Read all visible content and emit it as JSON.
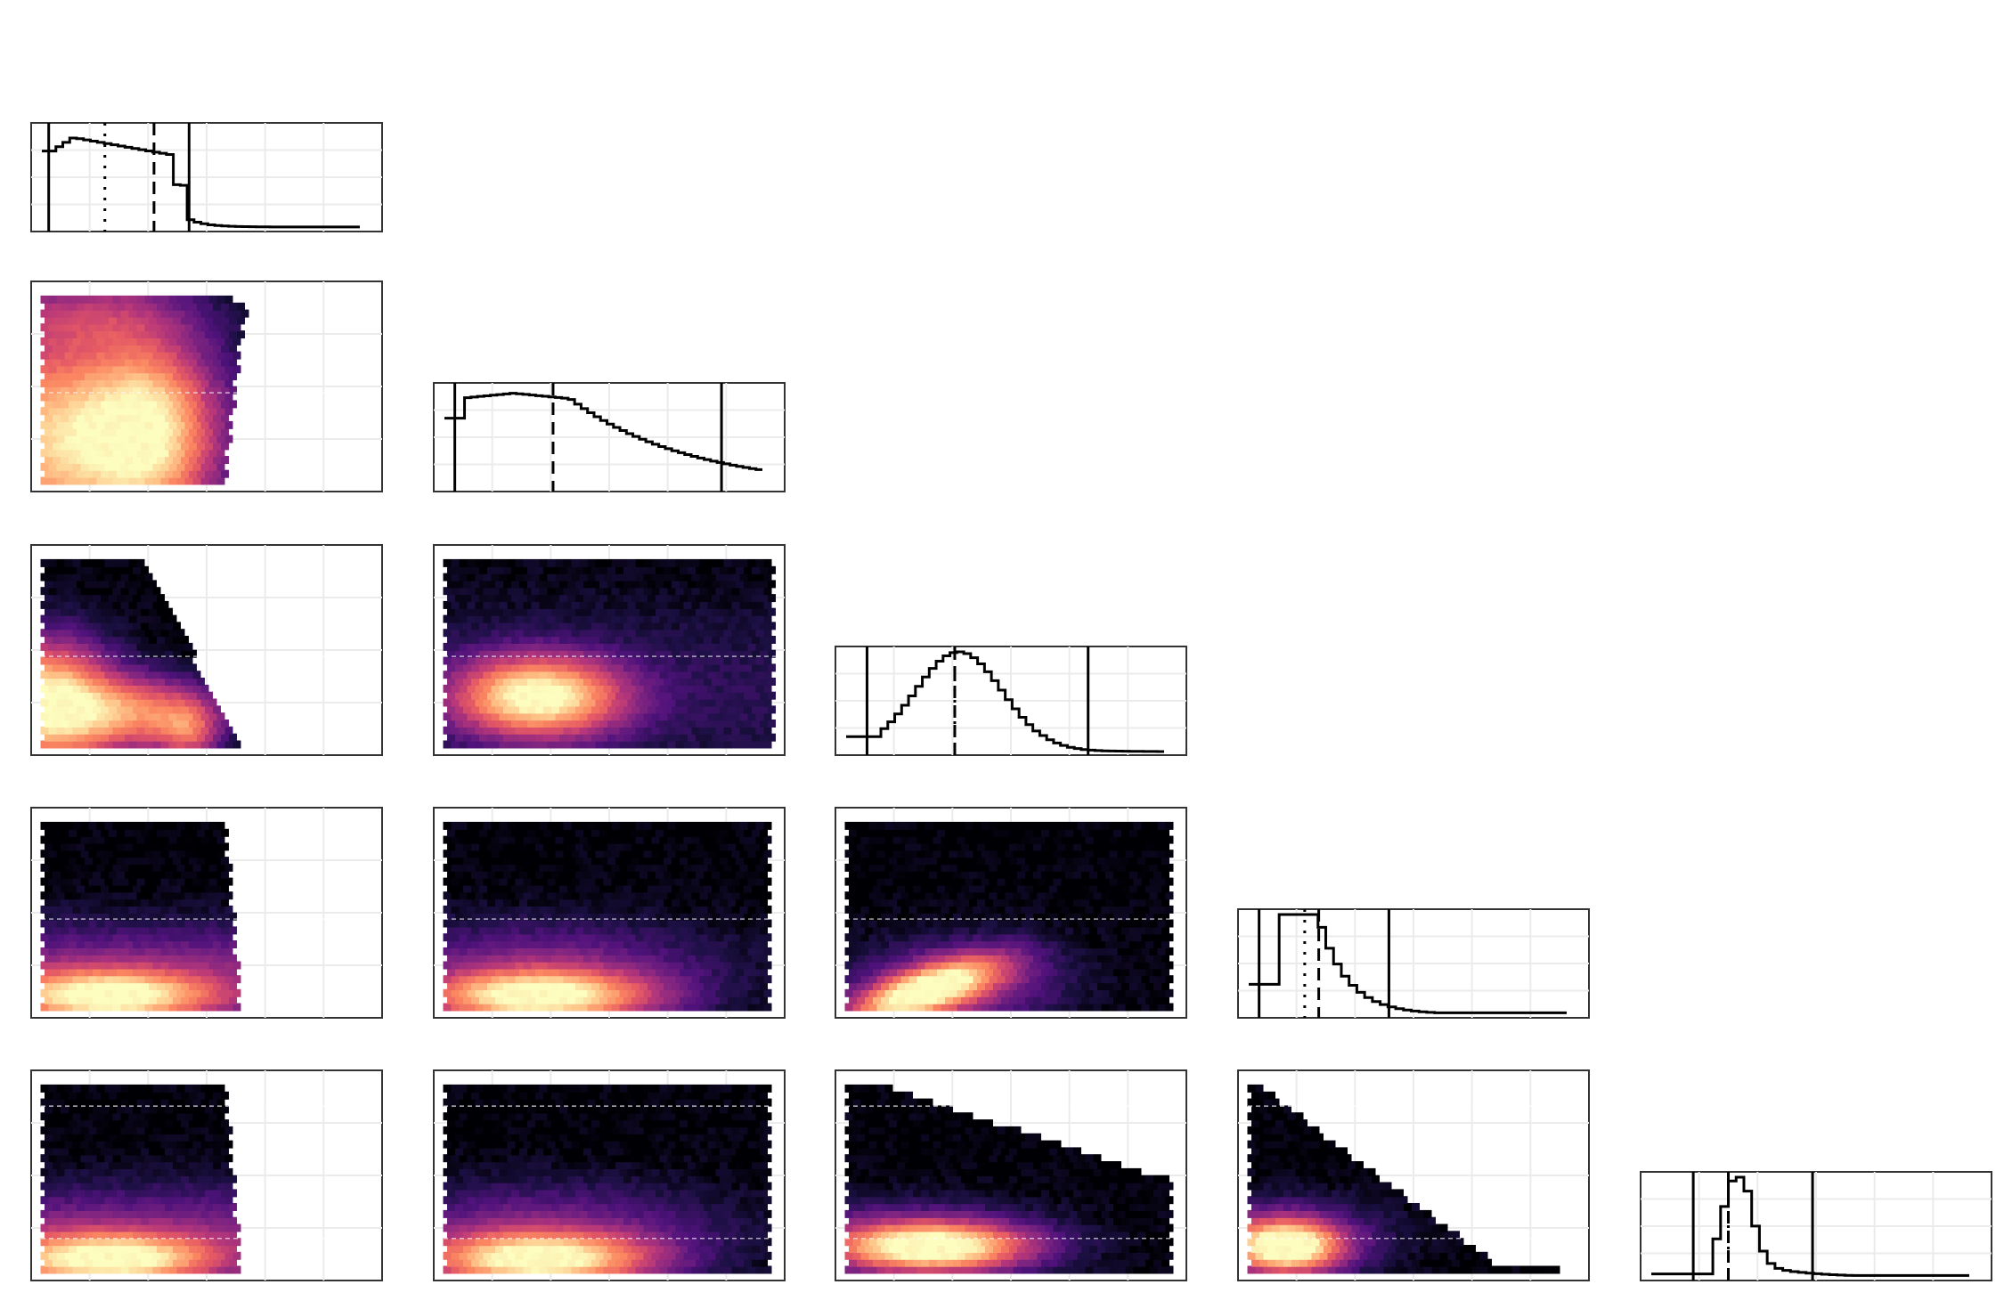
{
  "chart_data": [
    {
      "type": "histogram",
      "row": 0,
      "col": 0,
      "bin_count": 45,
      "hist_mode": "decaying-cliff",
      "bounds": [
        0.05,
        0.45
      ],
      "dash": 0.35,
      "dot": 0.21
    },
    {
      "type": "histogram",
      "row": 1,
      "col": 1,
      "bin_count": 48,
      "hist_mode": "plateau",
      "bounds": [
        0.06,
        0.82
      ],
      "dash": 0.34
    },
    {
      "type": "histogram",
      "row": 2,
      "col": 2,
      "bin_count": 45,
      "hist_mode": "bell",
      "bounds": [
        0.09,
        0.72
      ],
      "dash": 0.34,
      "dot": 0.34
    },
    {
      "type": "histogram",
      "row": 3,
      "col": 3,
      "bin_count": 40,
      "hist_mode": "sharp-right-skew",
      "bounds": [
        0.06,
        0.43
      ],
      "dash": 0.23,
      "dot": 0.19
    },
    {
      "type": "histogram",
      "row": 4,
      "col": 4,
      "bin_count": 40,
      "hist_mode": "narrow-peak",
      "bounds": [
        0.15,
        0.49
      ],
      "dash": 0.25,
      "dot": 0.25
    },
    {
      "type": "heatmap",
      "row": 1,
      "col": 0,
      "density": "wedge-left",
      "ref_lines": [
        0.47
      ]
    },
    {
      "type": "heatmap",
      "row": 2,
      "col": 0,
      "density": "triangle-decreasing",
      "ref_lines": [
        0.47
      ]
    },
    {
      "type": "heatmap",
      "row": 2,
      "col": 1,
      "density": "central-blob",
      "ref_lines": [
        0.47
      ]
    },
    {
      "type": "heatmap",
      "row": 3,
      "col": 0,
      "density": "bottom-band-short",
      "ref_lines": [
        0.47
      ]
    },
    {
      "type": "heatmap",
      "row": 3,
      "col": 1,
      "density": "bottom-band-wide",
      "ref_lines": [
        0.47
      ]
    },
    {
      "type": "heatmap",
      "row": 3,
      "col": 2,
      "density": "diagonal-rising",
      "ref_lines": [
        0.47
      ]
    },
    {
      "type": "heatmap",
      "row": 4,
      "col": 0,
      "density": "bottom-band-short",
      "ref_lines": [
        0.2,
        0.83
      ]
    },
    {
      "type": "heatmap",
      "row": 4,
      "col": 1,
      "density": "bottom-band-wide",
      "ref_lines": [
        0.2,
        0.83
      ]
    },
    {
      "type": "heatmap",
      "row": 4,
      "col": 2,
      "density": "bottom-decaying",
      "ref_lines": [
        0.2,
        0.83
      ]
    },
    {
      "type": "heatmap",
      "row": 4,
      "col": 3,
      "density": "corner-decaying",
      "ref_lines": [
        0.2,
        0.83
      ]
    }
  ],
  "colors": {
    "colormap": [
      "#000004",
      "#1c1044",
      "#4f127b",
      "#812581",
      "#b5367a",
      "#e55964",
      "#fb8761",
      "#fec287",
      "#fcfdbf"
    ],
    "frame": "#333333",
    "grid": "#ebebeb",
    "line": "#000000"
  }
}
